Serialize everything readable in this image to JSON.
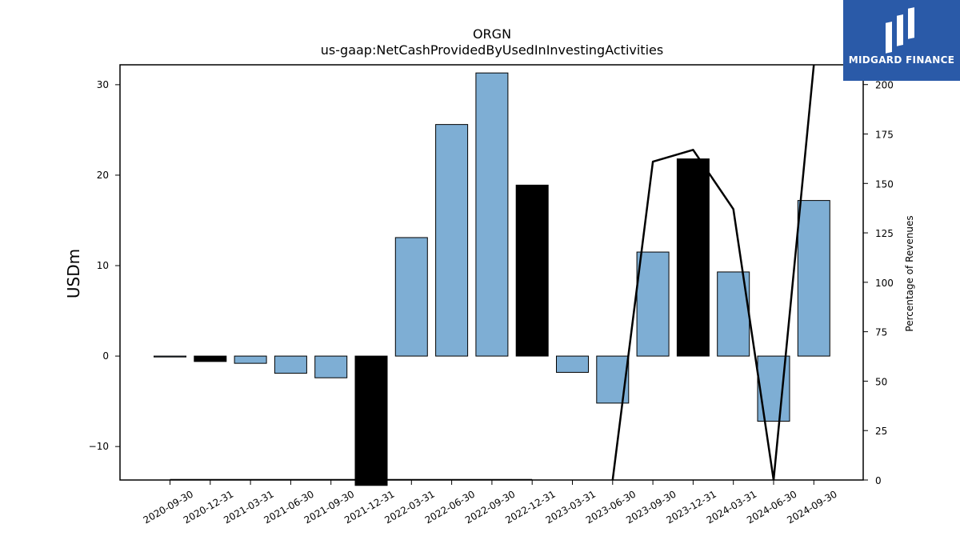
{
  "chart_data": {
    "type": "bar",
    "title": "ORGN",
    "subtitle": "us-gaap:NetCashProvidedByUsedInInvestingActivities",
    "ylabel": "USDm",
    "y2label": "Percentage of Revenues",
    "categories": [
      "2020-09-30",
      "2020-12-31",
      "2021-03-31",
      "2021-06-30",
      "2021-09-30",
      "2021-12-31",
      "2022-03-31",
      "2022-06-30",
      "2022-09-30",
      "2022-12-31",
      "2023-03-31",
      "2023-06-30",
      "2023-09-30",
      "2023-12-31",
      "2024-03-31",
      "2024-06-30",
      "2024-09-30"
    ],
    "values": [
      -0.1,
      -0.6,
      -0.8,
      -1.9,
      -2.4,
      -14.3,
      13.1,
      25.6,
      31.3,
      18.9,
      -1.8,
      -5.2,
      11.5,
      21.8,
      9.3,
      -7.2,
      17.2
    ],
    "bar_colors": [
      "#7eaed4",
      "#000000",
      "#7eaed4",
      "#7eaed4",
      "#7eaed4",
      "#000000",
      "#7eaed4",
      "#7eaed4",
      "#7eaed4",
      "#000000",
      "#7eaed4",
      "#7eaed4",
      "#7eaed4",
      "#000000",
      "#7eaed4",
      "#7eaed4",
      "#7eaed4"
    ],
    "percentage_of_revenues": [
      0,
      0,
      0,
      0,
      0,
      0,
      0,
      0,
      0,
      0,
      null,
      0,
      161,
      167,
      137,
      0,
      210
    ],
    "ylim": [
      -13.7,
      32.2
    ],
    "yticks": [
      -10,
      0,
      10,
      20,
      30
    ],
    "ytick_labels": [
      "−10",
      "0",
      "10",
      "20",
      "30"
    ],
    "y2lim": [
      0,
      210
    ],
    "y2ticks": [
      0,
      25,
      50,
      75,
      100,
      125,
      150,
      175,
      200
    ],
    "grid": false,
    "legend": "none",
    "colors": {
      "quarter_bar": "#7eaed4",
      "year_end_bar": "#000000",
      "line": "#000000"
    }
  },
  "logo": {
    "text": "MIDGARD FINANCE",
    "background": "#2a5aa8"
  }
}
